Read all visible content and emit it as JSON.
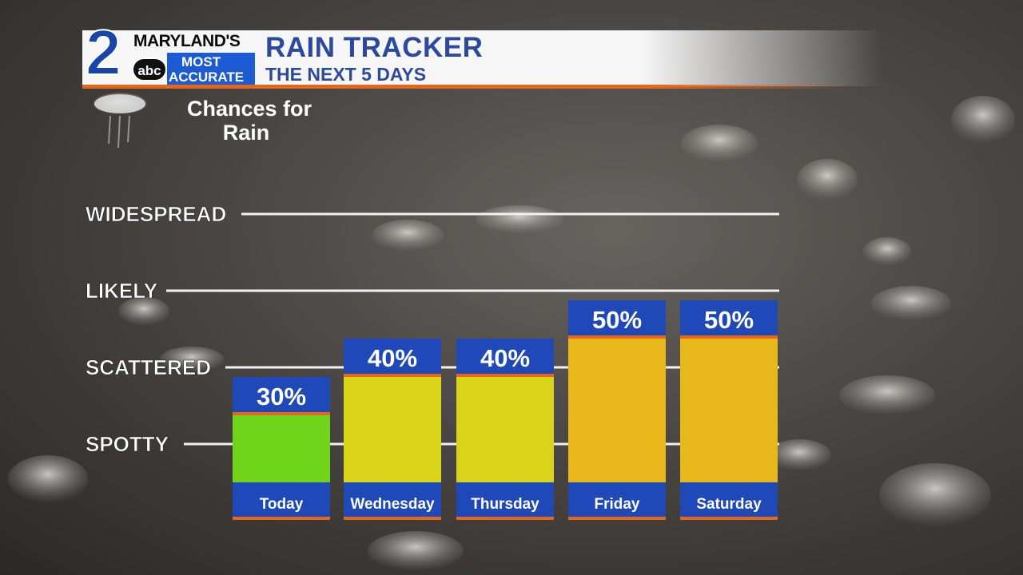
{
  "header": {
    "logo_number": "2",
    "logo_maryland": "MARYLAND'S",
    "logo_abc": "abc",
    "logo_most": "MOST",
    "logo_accurate": "ACCURATE",
    "title": "RAIN TRACKER",
    "subtitle": "THE NEXT 5 DAYS"
  },
  "colors": {
    "brand_blue": "#1746a8",
    "accent_orange": "#e8661a",
    "bar_green": "#6fd41a",
    "bar_yellow": "#d9d31a",
    "bar_gold": "#e8b81a",
    "cap_blue": "#1f48b8"
  },
  "chart_data": {
    "type": "bar",
    "ylabel": "Chances for Rain",
    "categories": [
      "Today",
      "Wednesday",
      "Thursday",
      "Friday",
      "Saturday"
    ],
    "values": [
      30,
      40,
      40,
      50,
      50
    ],
    "value_labels": [
      "30%",
      "40%",
      "40%",
      "50%",
      "50%"
    ],
    "bar_colors": [
      "#6fd41a",
      "#d9d31a",
      "#d9d31a",
      "#e8b81a",
      "#e8b81a"
    ],
    "ylim": [
      0,
      100
    ],
    "levels": [
      {
        "label": "WIDESPREAD",
        "value": 80
      },
      {
        "label": "LIKELY",
        "value": 60
      },
      {
        "label": "SCATTERED",
        "value": 40
      },
      {
        "label": "SPOTTY",
        "value": 20
      }
    ],
    "grid": false,
    "legend": "none"
  }
}
